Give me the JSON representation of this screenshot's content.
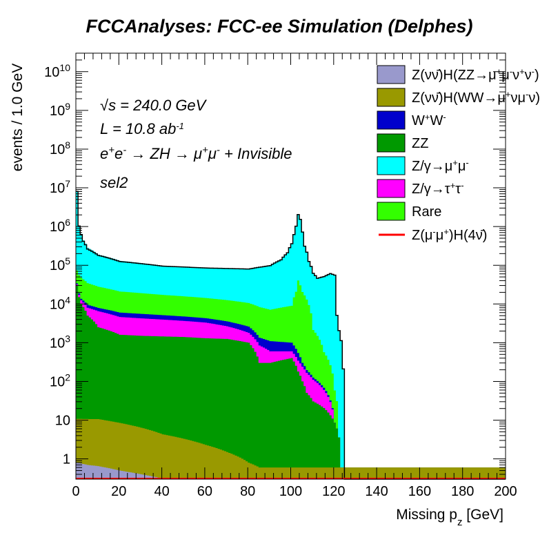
{
  "chart_data": {
    "type": "area",
    "stacked": true,
    "title": "FCCAnalyses: FCC-ee Simulation (Delphes)",
    "xlabel": "Missing p_z [GeV]",
    "ylabel": "events / 1.0 GeV",
    "xlim": [
      0,
      200
    ],
    "ylim": [
      0.3,
      30000000000
    ],
    "yscale": "log",
    "x_ticks": [
      "0",
      "20",
      "40",
      "60",
      "80",
      "100",
      "120",
      "140",
      "160",
      "180",
      "200"
    ],
    "y_ticks": [
      {
        "value": 1,
        "label": "1"
      },
      {
        "value": 10,
        "label": "10"
      },
      {
        "value": 100,
        "label": "10^2"
      },
      {
        "value": 1000,
        "label": "10^3"
      },
      {
        "value": 10000,
        "label": "10^4"
      },
      {
        "value": 100000,
        "label": "10^5"
      },
      {
        "value": 1000000,
        "label": "10^6"
      },
      {
        "value": 10000000,
        "label": "10^7"
      },
      {
        "value": 100000000,
        "label": "10^8"
      },
      {
        "value": 1000000000,
        "label": "10^9"
      },
      {
        "value": 10000000000,
        "label": "10^10"
      }
    ],
    "annotations": {
      "sqrt_s": "√s = 240.0 GeV",
      "lumi": "L = 10.8 ab^-1",
      "process": "e+e- → ZH → μ+μ- + Invisible",
      "selection": "sel2"
    },
    "series": [
      {
        "name": "Z(νν̄)H(ZZ→μ+μ-ν+ν-)",
        "color": "#9999cc",
        "x": [
          0,
          5,
          10,
          20,
          30,
          40,
          45,
          60,
          80,
          100,
          120,
          200
        ],
        "y": [
          0.8,
          0.7,
          0.65,
          0.5,
          0.4,
          0.31,
          0.3,
          0.3,
          0.3,
          0.3,
          0.3,
          0.3
        ]
      },
      {
        "name": "Z(νν̄)H(WW→μ+νμ-ν)",
        "color": "#999900",
        "x": [
          0,
          5,
          10,
          20,
          30,
          40,
          50,
          60,
          70,
          80,
          85,
          90,
          100,
          200
        ],
        "y": [
          10,
          10,
          10,
          8,
          6,
          4,
          3,
          2,
          1.2,
          0.5,
          0.3,
          0.3,
          0.3,
          0.3
        ]
      },
      {
        "name": "W+W-",
        "color": "#0000cc",
        "x": [
          0,
          2,
          5,
          10,
          20,
          40,
          60,
          70,
          80,
          85,
          90,
          100,
          103,
          105,
          107,
          110,
          115,
          118,
          120,
          125
        ],
        "y": [
          2000,
          1200,
          1500,
          1400,
          1400,
          1200,
          1000,
          900,
          800,
          500,
          500,
          400,
          200,
          60,
          30,
          15,
          8,
          3,
          0,
          0
        ]
      },
      {
        "name": "ZZ",
        "color": "#009900",
        "x": [
          0,
          1,
          2,
          5,
          10,
          20,
          30,
          40,
          50,
          60,
          70,
          80,
          85,
          90,
          95,
          100,
          103,
          105,
          107,
          110,
          115,
          120,
          122,
          123,
          124,
          200
        ],
        "y": [
          30000,
          15000,
          10000,
          5000,
          2500,
          1600,
          1500,
          1450,
          1400,
          1300,
          1250,
          1000,
          300,
          300,
          350,
          400,
          180,
          100,
          50,
          30,
          20,
          8,
          3,
          0,
          0,
          0
        ]
      },
      {
        "name": "Z/γ→μ+μ-",
        "color": "#00ffff",
        "x": [
          0,
          0.5,
          1,
          2,
          3,
          5,
          10,
          20,
          40,
          60,
          80,
          90,
          95,
          98,
          100,
          101,
          102,
          103,
          104,
          105,
          106,
          108,
          110,
          112,
          115,
          118,
          120,
          121,
          122,
          124,
          125,
          200
        ],
        "y": [
          8000000,
          2000000,
          1000000,
          600000,
          400000,
          250000,
          160000,
          110000,
          80000,
          70000,
          70000,
          90000,
          130000,
          200000,
          350000,
          600000,
          1000000,
          2000000,
          1500000,
          700000,
          300000,
          120000,
          60000,
          45000,
          50000,
          60000,
          55000,
          5000,
          2000,
          200,
          0,
          0
        ]
      },
      {
        "name": "Z/γ→τ+τ-",
        "color": "#ff00ff",
        "x": [
          0,
          5,
          10,
          20,
          40,
          60,
          80,
          90,
          100,
          110,
          120
        ],
        "y": [
          2000,
          3000,
          4000,
          3000,
          2500,
          2000,
          800,
          300,
          200,
          80,
          0
        ]
      },
      {
        "name": "Rare",
        "color": "#33ff00",
        "x": [
          0,
          5,
          10,
          20,
          40,
          60,
          80,
          90,
          100,
          102,
          103,
          105,
          110,
          115,
          120,
          122
        ],
        "y": [
          40000,
          25000,
          20000,
          15000,
          12000,
          10000,
          8000,
          6000,
          8000,
          20000,
          40000,
          20000,
          2000,
          500,
          50,
          0
        ]
      }
    ],
    "total_stack_line": {
      "name": "total",
      "color": "#000000",
      "x": [
        0,
        0.5,
        1,
        2,
        3,
        5,
        10,
        20,
        40,
        60,
        80,
        90,
        95,
        98,
        100,
        101,
        102,
        103,
        104,
        105,
        106,
        108,
        110,
        112,
        115,
        118,
        120,
        121,
        122,
        124,
        125,
        200
      ],
      "y": [
        8070000,
        2050000,
        1030000,
        620000,
        415000,
        262000,
        180000,
        125000,
        95000,
        85000,
        80000,
        98000,
        138000,
        210000,
        360000,
        620000,
        1020000,
        2040000,
        1530000,
        720000,
        310000,
        125000,
        62000,
        46000,
        51000,
        61000,
        55500,
        5100,
        2050,
        210,
        0.3,
        0.3
      ]
    },
    "signal_line": {
      "name": "Z(μ-μ+)H(4ν̄)",
      "color": "#ff0000",
      "x": [
        0,
        122,
        124,
        200
      ],
      "y": [
        0.3,
        0.3,
        0.3,
        0.3
      ]
    },
    "legend_entries": [
      {
        "label": "Z(νν̄)H(ZZ→μ+μ-ν+ν-)",
        "color": "#9999cc",
        "kind": "box"
      },
      {
        "label": "Z(νν̄)H(WW→μ+νμ-ν)",
        "color": "#999900",
        "kind": "box"
      },
      {
        "label": "W+W-",
        "color": "#0000cc",
        "kind": "box"
      },
      {
        "label": "ZZ",
        "color": "#009900",
        "kind": "box"
      },
      {
        "label": "Z/γ→μ+μ-",
        "color": "#00ffff",
        "kind": "box"
      },
      {
        "label": "Z/γ→τ+τ-",
        "color": "#ff00ff",
        "kind": "box"
      },
      {
        "label": "Rare",
        "color": "#33ff00",
        "kind": "box"
      },
      {
        "label": "Z(μ-μ+)H(4ν̄)",
        "color": "#ff0000",
        "kind": "line"
      }
    ],
    "legend_position": "top-right",
    "grid": false
  }
}
